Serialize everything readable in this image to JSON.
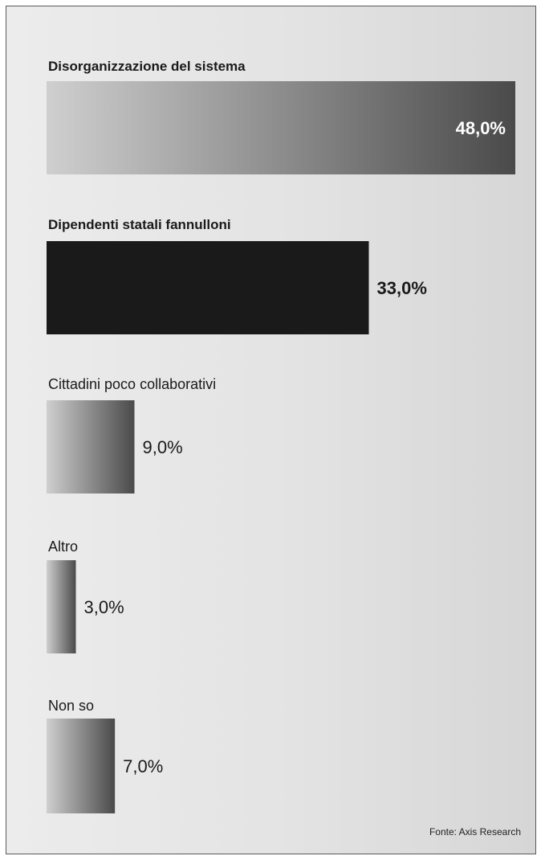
{
  "chart_data": {
    "type": "bar",
    "orientation": "horizontal",
    "categories": [
      "Disorganizzazione del sistema",
      "Dipendenti statali fannulloni",
      "Cittadini poco collaborativi",
      "Altro",
      "Non so"
    ],
    "values": [
      48.0,
      33.0,
      9.0,
      3.0,
      7.0
    ],
    "value_labels": [
      "48,0%",
      "33,0%",
      "9,0%",
      "3,0%",
      "7,0%"
    ],
    "unit": "%",
    "xlim": [
      0,
      48
    ],
    "emphasis": [
      "bold",
      "bold",
      "normal",
      "normal",
      "normal"
    ],
    "bar_styles": [
      "gradient",
      "solid",
      "gradient",
      "gradient",
      "gradient"
    ],
    "value_positions": [
      "inside",
      "outside",
      "outside",
      "outside",
      "outside"
    ],
    "colors": {
      "gradient_light": "#cfcfcf",
      "gradient_dark": "#4a4a4a",
      "solid": "#1a1a1a",
      "inside_label": "#ffffff",
      "label": "#1a1a1a",
      "background": "#e6e6e6",
      "border": "#5a5a5a"
    },
    "grid": false,
    "legend": "none"
  },
  "source": "Fonte: Axis Research"
}
